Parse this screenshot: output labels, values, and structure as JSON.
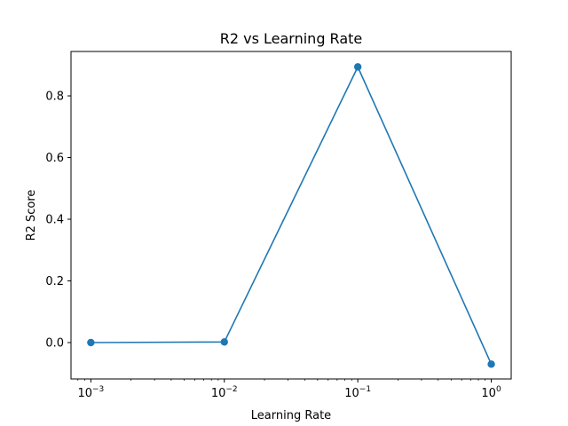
{
  "chart_data": {
    "type": "line",
    "title": "R2 vs Learning Rate",
    "xlabel": "Learning Rate",
    "ylabel": "R2 Score",
    "xscale": "log",
    "xlim": [
      0.00071,
      1.41
    ],
    "ylim": [
      -0.118,
      0.944
    ],
    "grid": false,
    "legend": "none",
    "series_color": "#1f77b4",
    "x_ticks": [
      {
        "value": 0.001,
        "base": "10",
        "exp": "−3"
      },
      {
        "value": 0.01,
        "base": "10",
        "exp": "−2"
      },
      {
        "value": 0.1,
        "base": "10",
        "exp": "−1"
      },
      {
        "value": 1,
        "base": "10",
        "exp": "0"
      }
    ],
    "y_ticks": [
      "0.0",
      "0.2",
      "0.4",
      "0.6",
      "0.8"
    ],
    "y_tick_values": [
      0.0,
      0.2,
      0.4,
      0.6,
      0.8
    ],
    "series": [
      {
        "x": [
          0.001,
          0.01,
          0.1,
          1
        ],
        "y": [
          0.0,
          0.002,
          0.894,
          -0.07
        ]
      }
    ]
  }
}
